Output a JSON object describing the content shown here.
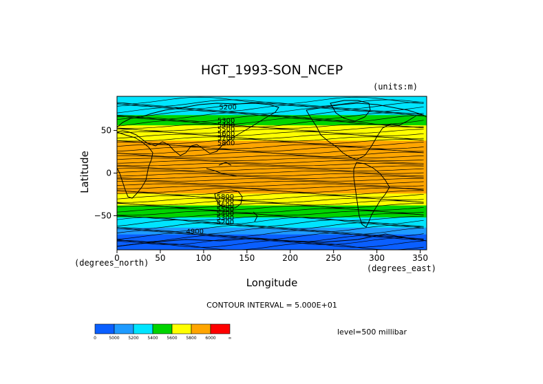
{
  "chart_data": {
    "type": "heatmap",
    "title": "HGT_1993-SON_NCEP",
    "units": "(units:m)",
    "xlabel": "Longitude",
    "ylabel": "Latitude",
    "x_unit": "(degrees_east)",
    "y_unit": "(degrees_north)",
    "xlim": [
      0,
      357.5
    ],
    "ylim": [
      -90,
      90
    ],
    "x_ticks": [
      0,
      50,
      100,
      150,
      200,
      250,
      300,
      350
    ],
    "y_ticks": [
      -50,
      0,
      50
    ],
    "contour_interval_text": "CONTOUR INTERVAL = 5.000E+01",
    "level_text": "level=500 millibar",
    "contour_labels": [
      {
        "text": "5200",
        "lon": 128,
        "lat": 78
      },
      {
        "text": "5300",
        "lon": 126,
        "lat": 62
      },
      {
        "text": "5400",
        "lon": 126,
        "lat": 57
      },
      {
        "text": "5500",
        "lon": 126,
        "lat": 52
      },
      {
        "text": "5600",
        "lon": 126,
        "lat": 47
      },
      {
        "text": "5700",
        "lon": 126,
        "lat": 42
      },
      {
        "text": "5800",
        "lon": 126,
        "lat": 36
      },
      {
        "text": "5800",
        "lon": 125,
        "lat": -27
      },
      {
        "text": "5700",
        "lon": 125,
        "lat": -32
      },
      {
        "text": "5600",
        "lon": 125,
        "lat": -37
      },
      {
        "text": "5500",
        "lon": 125,
        "lat": -42
      },
      {
        "text": "5400",
        "lon": 125,
        "lat": -47
      },
      {
        "text": "5300",
        "lon": 125,
        "lat": -52
      },
      {
        "text": "5200",
        "lon": 125,
        "lat": -57
      },
      {
        "text": "4900",
        "lon": 90,
        "lat": -68
      }
    ],
    "colorbar": {
      "bins": [
        {
          "color": "#0a5fff"
        },
        {
          "color": "#1e9bff"
        },
        {
          "color": "#00e5ff"
        },
        {
          "color": "#00d400"
        },
        {
          "color": "#ffff00"
        },
        {
          "color": "#ffa500"
        },
        {
          "color": "#ff0000"
        }
      ],
      "tick_labels": [
        "0",
        "5000",
        "5200",
        "5400",
        "5600",
        "5800",
        "6000",
        "∞"
      ]
    },
    "color_bands": [
      {
        "lat_from": 90,
        "lat_to": 68,
        "color": "#00e5ff"
      },
      {
        "lat_from": 68,
        "lat_to": 56,
        "color": "#00d400"
      },
      {
        "lat_from": 56,
        "lat_to": 38,
        "color": "#ffff00"
      },
      {
        "lat_from": 38,
        "lat_to": -24,
        "color": "#ffa500"
      },
      {
        "lat_from": -24,
        "lat_to": -38,
        "color": "#ffff00"
      },
      {
        "lat_from": -38,
        "lat_to": -52,
        "color": "#00d400"
      },
      {
        "lat_from": -52,
        "lat_to": -64,
        "color": "#00e5ff"
      },
      {
        "lat_from": -64,
        "lat_to": -72,
        "color": "#1e9bff"
      },
      {
        "lat_from": -72,
        "lat_to": -90,
        "color": "#0a5fff"
      }
    ],
    "grid": false,
    "legend": "bottom-left"
  }
}
